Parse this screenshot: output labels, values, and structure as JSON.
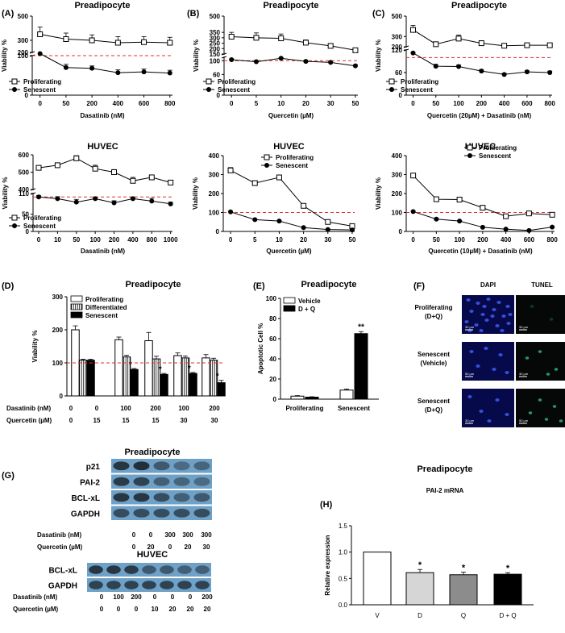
{
  "figure": {
    "panels": {
      "A": "(A)",
      "B": "(B)",
      "C": "(C)",
      "D": "(D)",
      "E": "(E)",
      "F": "(F)",
      "G": "(G)",
      "H": "(H)"
    }
  },
  "chart_data": [
    {
      "id": "A1",
      "type": "line",
      "title": "Preadipocyte",
      "xlabel": "Dasatinib (nM)",
      "ylabel": "Viability %",
      "categories": [
        "0",
        "50",
        "200",
        "400",
        "600",
        "800"
      ],
      "yticks_top": [
        "500",
        "300",
        "200"
      ],
      "yticks_bottom": [
        "100",
        "0"
      ],
      "reference_line": 100,
      "legend_position": "bottom-left",
      "series": [
        {
          "name": "Proliferating",
          "marker": "open-square",
          "values": [
            350,
            310,
            300,
            280,
            285,
            280
          ],
          "errors": [
            60,
            50,
            45,
            50,
            45,
            45
          ]
        },
        {
          "name": "Senescent",
          "marker": "filled-circle",
          "values": [
            105,
            70,
            68,
            57,
            59,
            56
          ],
          "errors": [
            0,
            8,
            6,
            7,
            7,
            7
          ]
        }
      ]
    },
    {
      "id": "B1",
      "type": "line",
      "title": "Preadipocyte",
      "xlabel": "Quercetin (µM)",
      "ylabel": "Viability %",
      "categories": [
        "0",
        "5",
        "10",
        "20",
        "30",
        "50"
      ],
      "yticks_top": [
        "500",
        "350",
        "300",
        "250",
        "200",
        "150"
      ],
      "yticks_bottom": [
        "100",
        "60",
        "0"
      ],
      "reference_line": 100,
      "legend_position": "bottom-left",
      "series": [
        {
          "name": "Proliferating",
          "marker": "open-square",
          "values": [
            310,
            300,
            295,
            255,
            225,
            185
          ],
          "errors": [
            40,
            45,
            40,
            25,
            20,
            15
          ]
        },
        {
          "name": "Senescent",
          "marker": "filled-circle",
          "values": [
            103,
            97,
            107,
            98,
            95,
            85
          ],
          "errors": [
            2,
            2,
            2,
            2,
            2,
            3
          ]
        }
      ]
    },
    {
      "id": "C1",
      "type": "line",
      "title": "Preadipocyte",
      "xlabel": "Quercetin (20µM) + Dasatinib (nM)",
      "ylabel": "Viability %",
      "categories": [
        "0",
        "50",
        "100",
        "200",
        "400",
        "600",
        "800"
      ],
      "yticks_top": [
        "500",
        "300",
        "200"
      ],
      "yticks_bottom": [
        "120",
        "60",
        "0"
      ],
      "reference_line": 100,
      "legend_position": "bottom-left",
      "series": [
        {
          "name": "Proliferating",
          "marker": "open-square",
          "values": [
            365,
            225,
            280,
            235,
            210,
            215,
            215
          ],
          "errors": [
            45,
            20,
            35,
            25,
            20,
            20,
            20
          ]
        },
        {
          "name": "Senescent",
          "marker": "filled-circle",
          "values": [
            112,
            77,
            76,
            64,
            55,
            62,
            60
          ],
          "errors": [
            2,
            5,
            4,
            4,
            3,
            3,
            4
          ]
        }
      ]
    },
    {
      "id": "A2",
      "type": "line",
      "title": "HUVEC",
      "xlabel": "Dasatinib (nM)",
      "ylabel": "Viability %",
      "categories": [
        "0",
        "10",
        "50",
        "100",
        "200",
        "400",
        "800",
        "1000"
      ],
      "yticks_top": [
        "600",
        "500",
        "400"
      ],
      "yticks_bottom": [
        "110",
        "50",
        "0"
      ],
      "reference_line": 100,
      "legend_position": "bottom-left",
      "series": [
        {
          "name": "Proliferating",
          "marker": "open-square",
          "values": [
            525,
            540,
            580,
            520,
            500,
            450,
            470,
            440
          ],
          "errors": [
            10,
            10,
            15,
            20,
            15,
            20,
            10,
            10
          ]
        },
        {
          "name": "Senescent",
          "marker": "filled-circle",
          "values": [
            100,
            95,
            85,
            95,
            83,
            95,
            88,
            80
          ],
          "errors": [
            4,
            6,
            8,
            5,
            6,
            5,
            8,
            5
          ]
        }
      ]
    },
    {
      "id": "B2",
      "type": "line",
      "title": "HUVEC",
      "xlabel": "Quercetin (µM)",
      "ylabel": "Viability %",
      "categories": [
        "0",
        "5",
        "10",
        "20",
        "30",
        "50"
      ],
      "yticks": [
        "0",
        "100",
        "200",
        "300",
        "400"
      ],
      "ylim": [
        0,
        400
      ],
      "reference_line": 100,
      "legend_position": "top-right",
      "series": [
        {
          "name": "Proliferating",
          "marker": "open-square",
          "values": [
            322,
            255,
            285,
            135,
            50,
            28
          ],
          "errors": [
            15,
            5,
            5,
            5,
            5,
            5
          ]
        },
        {
          "name": "Senescent",
          "marker": "filled-circle",
          "values": [
            103,
            62,
            55,
            20,
            10,
            8
          ],
          "errors": [
            3,
            3,
            3,
            3,
            3,
            3
          ]
        }
      ]
    },
    {
      "id": "C2",
      "type": "line",
      "title": "HUVEC",
      "xlabel": "Quercetin (10µM) + Dasatinib (nM)",
      "ylabel": "Viability %",
      "categories": [
        "0",
        "50",
        "100",
        "200",
        "400",
        "600",
        "800"
      ],
      "yticks": [
        "0",
        "100",
        "200",
        "300",
        "400"
      ],
      "ylim": [
        0,
        400
      ],
      "reference_line": 100,
      "legend_position": "top-right",
      "series": [
        {
          "name": "Proliferating",
          "marker": "open-square",
          "values": [
            295,
            170,
            168,
            125,
            80,
            95,
            88
          ],
          "errors": [
            5,
            5,
            5,
            5,
            5,
            5,
            5
          ]
        },
        {
          "name": "Senescent",
          "marker": "filled-circle",
          "values": [
            105,
            65,
            55,
            22,
            12,
            5,
            23
          ],
          "errors": [
            3,
            3,
            3,
            3,
            3,
            3,
            3
          ]
        }
      ]
    },
    {
      "id": "D",
      "type": "bar",
      "title": "Preadipocyte",
      "ylabel": "Viability %",
      "yticks": [
        "0",
        "100",
        "200",
        "300"
      ],
      "ylim": [
        0,
        300
      ],
      "reference_line": 100,
      "legend_position": "top-left",
      "row_labels": [
        "Dasatinib (nM)",
        "Quercetin (µM)"
      ],
      "dasatinib": [
        "0",
        "0",
        "100",
        "200",
        "100",
        "200"
      ],
      "quercetin": [
        "0",
        "15",
        "15",
        "15",
        "30",
        "30"
      ],
      "series": [
        {
          "name": "Proliferating",
          "pattern": "open",
          "values": [
            200,
            null,
            170,
            167,
            122,
            115
          ],
          "errors": [
            12,
            0,
            8,
            25,
            8,
            10
          ]
        },
        {
          "name": "Differentiated",
          "pattern": "striped",
          "values": [
            108,
            null,
            118,
            112,
            115,
            108
          ],
          "errors": [
            3,
            0,
            5,
            8,
            6,
            6
          ]
        },
        {
          "name": "Senescent",
          "pattern": "filled",
          "values": [
            108,
            null,
            80,
            65,
            68,
            40
          ],
          "errors": [
            3,
            0,
            3,
            3,
            3,
            7
          ]
        }
      ],
      "significance": [
        "",
        "",
        "*",
        "*",
        "*",
        "*"
      ]
    },
    {
      "id": "E",
      "type": "bar",
      "title": "Preadipocyte",
      "ylabel": "Apoptotic Cell %",
      "yticks": [
        "0",
        "20",
        "40",
        "60",
        "80",
        "100"
      ],
      "ylim": [
        0,
        100
      ],
      "legend_position": "top-left",
      "categories": [
        "Proliferating",
        "Senescent"
      ],
      "series": [
        {
          "name": "Vehicle",
          "pattern": "open",
          "values": [
            3,
            9
          ],
          "errors": [
            0.5,
            1
          ]
        },
        {
          "name": "D + Q",
          "pattern": "filled",
          "values": [
            2,
            65
          ],
          "errors": [
            0.4,
            2
          ]
        }
      ],
      "significance": [
        "",
        "**"
      ]
    },
    {
      "id": "H",
      "type": "bar",
      "title": "Preadipocyte",
      "subtitle": "PAI-2 mRNA",
      "ylabel": "Relative expression",
      "yticks": [
        "0.0",
        "0.5",
        "1.0",
        "1.5"
      ],
      "ylim": [
        0,
        1.5
      ],
      "categories": [
        "V",
        "D",
        "Q",
        "D + Q"
      ],
      "values": [
        1.0,
        0.61,
        0.57,
        0.58
      ],
      "errors": [
        0,
        0.06,
        0.05,
        0.03
      ],
      "colors": [
        "#ffffff",
        "#d6d6d6",
        "#8c8c8c",
        "#000000"
      ],
      "significance": [
        "",
        "*",
        "*",
        "*"
      ]
    }
  ],
  "microscopy": {
    "columns": [
      "DAPI",
      "TUNEL"
    ],
    "rows": [
      {
        "label": "Proliferating\n(D+Q)"
      },
      {
        "label": "Senescent\n(Vehicle)"
      },
      {
        "label": "Senescent\n(D+Q)"
      }
    ],
    "scale_bars": [
      [
        "30 µm",
        "30 µm"
      ],
      [
        "50 µm",
        "30 µm"
      ],
      [
        "30 µm",
        "50 µm"
      ]
    ]
  },
  "western": {
    "pre": {
      "title": "Preadipocyte",
      "bands": [
        "p21",
        "PAI-2",
        "BCL-xL",
        "GAPDH"
      ],
      "row_labels": [
        "Dasatinib (nM)",
        "Quercetin (µM)"
      ],
      "dasatinib": [
        "0",
        "0",
        "300",
        "300",
        "300"
      ],
      "quercetin": [
        "0",
        "20",
        "0",
        "20",
        "30"
      ]
    },
    "huvec": {
      "title": "HUVEC",
      "bands": [
        "BCL-xL",
        "GAPDH"
      ],
      "row_labels": [
        "Dasatinib (nM)",
        "Quercetin (µM)"
      ],
      "dasatinib": [
        "0",
        "100",
        "200",
        "0",
        "0",
        "0",
        "200"
      ],
      "quercetin": [
        "0",
        "0",
        "0",
        "10",
        "20",
        "20",
        "20"
      ]
    }
  },
  "colors": {
    "reference_line": "#e03030",
    "blot_bg": "#6fa0c6",
    "micro_bg": "#060a4a"
  }
}
